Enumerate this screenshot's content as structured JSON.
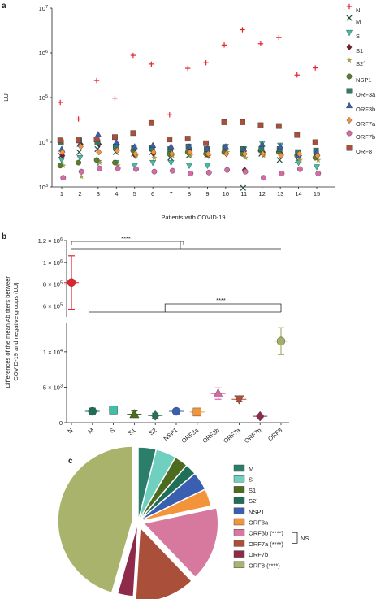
{
  "chart_data": [
    {
      "panel": "a",
      "type": "scatter",
      "xlabel": "Patients with COVID-19",
      "ylabel": "LU",
      "yscale": "log",
      "ylim": [
        1000,
        10000000
      ],
      "ytick_labels": [
        {
          "base": "10",
          "exp": "3",
          "value": 1000
        },
        {
          "base": "10",
          "exp": "4",
          "value": 10000
        },
        {
          "base": "10",
          "exp": "5",
          "value": 100000
        },
        {
          "base": "10",
          "exp": "6",
          "value": 1000000
        },
        {
          "base": "10",
          "exp": "7",
          "value": 10000000
        }
      ],
      "categories": [
        "1",
        "2",
        "3",
        "4",
        "5",
        "6",
        "7",
        "8",
        "9",
        "10",
        "11",
        "12",
        "13",
        "14",
        "15"
      ],
      "legend_position": "right",
      "series": [
        {
          "name": "N",
          "marker": "plus",
          "color": "#e3232b",
          "values": [
            78000,
            33000,
            240000,
            97000,
            880000,
            560000,
            41000,
            450000,
            600000,
            1500000,
            3300000,
            1600000,
            2200000,
            320000,
            460000
          ]
        },
        {
          "name": "M",
          "marker": "x",
          "color": "#1f4e3d",
          "values": [
            5000,
            6000,
            7000,
            6000,
            5500,
            6000,
            4500,
            5000,
            5000,
            6500,
            950,
            5500,
            4000,
            4000,
            5500
          ]
        },
        {
          "name": "S",
          "marker": "tri-down",
          "color": "#3fbfa8",
          "values": [
            4000,
            4500,
            3500,
            3500,
            3000,
            3500,
            3500,
            3000,
            3000,
            8000,
            7000,
            9500,
            8500,
            3500,
            2800
          ]
        },
        {
          "name": "S1",
          "marker": "diamond",
          "color": "#7a1d2f",
          "values": [
            5000,
            9000,
            9000,
            9000,
            5000,
            5500,
            5500,
            6500,
            5000,
            5500,
            2400,
            6000,
            5500,
            5000,
            5000
          ]
        },
        {
          "name": "S2´",
          "marker": "star",
          "color": "#a3a04a",
          "values": [
            3000,
            1700,
            3500,
            3000,
            5000,
            4500,
            5000,
            5000,
            5000,
            6000,
            4500,
            5000,
            5000,
            4000,
            4000
          ]
        },
        {
          "name": "NSP1",
          "marker": "circle",
          "color": "#5d7b2a",
          "values": [
            3000,
            3500,
            4000,
            3500,
            6500,
            7000,
            5500,
            6000,
            5500,
            6000,
            5500,
            6500,
            6000,
            5000,
            4500
          ]
        },
        {
          "name": "ORF3a",
          "marker": "square",
          "color": "#2b7f6a",
          "values": [
            10000,
            11000,
            10000,
            8000,
            7500,
            7500,
            7000,
            8000,
            7000,
            7500,
            7000,
            7000,
            7000,
            6000,
            6500
          ]
        },
        {
          "name": "ORF3b",
          "marker": "tri-up",
          "color": "#3a5fb0",
          "values": [
            7000,
            9000,
            15000,
            10000,
            8000,
            8500,
            8000,
            8000,
            7000,
            8000,
            7000,
            9000,
            8000,
            5000,
            6000
          ]
        },
        {
          "name": "ORF7a",
          "marker": "diamond",
          "color": "#f4943a",
          "values": [
            6000,
            8000,
            6000,
            6500,
            5500,
            6000,
            5500,
            6000,
            5500,
            5500,
            5500,
            5500,
            5000,
            5500,
            5000
          ]
        },
        {
          "name": "ORF7b",
          "marker": "circle",
          "color": "#d56aa6",
          "values": [
            1600,
            2200,
            2600,
            2600,
            2500,
            2200,
            2300,
            2000,
            2100,
            2400,
            2200,
            1600,
            2000,
            2500,
            2000
          ]
        },
        {
          "name": "ORF8",
          "marker": "square",
          "color": "#a94f3a",
          "values": [
            11000,
            11000,
            11500,
            13000,
            16000,
            27000,
            11500,
            12000,
            9500,
            28000,
            28000,
            24000,
            23000,
            14500,
            10000
          ]
        }
      ]
    },
    {
      "panel": "b",
      "type": "scatter",
      "ylabel": "Differences of the mean Ab titers between COVID-19 and negative groups (LU)",
      "categories": [
        "N",
        "M",
        "S",
        "S1",
        "S2",
        "NSP1",
        "ORF3a",
        "ORF3b",
        "ORF7a",
        "ORF7b",
        "ORF8"
      ],
      "broken_axis": true,
      "upper_ylim": [
        500000,
        1200000
      ],
      "lower_ylim": [
        0,
        14000
      ],
      "upper_ytick_labels": [
        {
          "mant": "1.2",
          "exp": "6",
          "value": 1200000
        },
        {
          "mant": "1",
          "exp": "6",
          "value": 1000000
        },
        {
          "mant": "8",
          "exp": "5",
          "value": 800000
        },
        {
          "mant": "6",
          "exp": "5",
          "value": 600000
        }
      ],
      "lower_ytick_labels": [
        {
          "mant": "1",
          "exp": "4",
          "value": 10000
        },
        {
          "mant": "5",
          "exp": "3",
          "value": 5000
        },
        {
          "plain": "0",
          "value": 0
        }
      ],
      "points": [
        {
          "category": "N",
          "value": 815000,
          "low": 570000,
          "high": 1060000,
          "color": "#e3232b",
          "marker": "circle"
        },
        {
          "category": "M",
          "value": 1600,
          "low": 1150,
          "high": 2050,
          "color": "#1f6e58",
          "marker": "circle"
        },
        {
          "category": "S",
          "value": 1800,
          "low": 1250,
          "high": 2350,
          "color": "#3fbfa8",
          "marker": "square"
        },
        {
          "category": "S1",
          "value": 1200,
          "low": 750,
          "high": 1650,
          "color": "#4d6b1e",
          "marker": "tri-up"
        },
        {
          "category": "S2",
          "value": 1000,
          "low": 650,
          "high": 1350,
          "color": "#2b6e5e",
          "marker": "diamond"
        },
        {
          "category": "NSP1",
          "value": 1600,
          "low": 1350,
          "high": 1850,
          "color": "#3a5fb0",
          "marker": "circle"
        },
        {
          "category": "ORF3a",
          "value": 1500,
          "low": 1000,
          "high": 2000,
          "color": "#f4943a",
          "marker": "square"
        },
        {
          "category": "ORF3b",
          "value": 4100,
          "low": 3300,
          "high": 4900,
          "color": "#d56aa6",
          "marker": "tri-up"
        },
        {
          "category": "ORF7a",
          "value": 3300,
          "low": 3050,
          "high": 3550,
          "color": "#a94f3a",
          "marker": "tri-down"
        },
        {
          "category": "ORF7b",
          "value": 900,
          "low": 700,
          "high": 1100,
          "color": "#8e2a4a",
          "marker": "diamond"
        },
        {
          "category": "ORF8",
          "value": 11500,
          "low": 9600,
          "high": 13400,
          "color": "#a3b068",
          "marker": "circle"
        }
      ],
      "annotations": [
        {
          "text": "****",
          "compare": "N vs all others"
        },
        {
          "text": "****",
          "compare": "ORF8 vs all others"
        }
      ]
    },
    {
      "panel": "c",
      "type": "pie",
      "legend_position": "right",
      "slices": [
        {
          "label": "M",
          "value": 3.6,
          "color": "#2b7f6a",
          "exploded": false
        },
        {
          "label": "S",
          "value": 4.1,
          "color": "#6fd0c0",
          "exploded": false
        },
        {
          "label": "S1",
          "value": 2.7,
          "color": "#4d6b1e",
          "exploded": false
        },
        {
          "label": "S2´",
          "value": 2.3,
          "color": "#1f6e58",
          "exploded": false
        },
        {
          "label": "NSP1",
          "value": 3.7,
          "color": "#3a5fb0",
          "exploded": false
        },
        {
          "label": "ORF3a",
          "value": 3.5,
          "color": "#f4943a",
          "exploded": false
        },
        {
          "label": "ORF3b (****)",
          "value": 14.9,
          "color": "#d7799e",
          "exploded": true
        },
        {
          "label": "ORF7a (****)",
          "value": 12.1,
          "color": "#a94f3a",
          "exploded": true
        },
        {
          "label": "ORF7b",
          "value": 3.2,
          "color": "#8e2a4a",
          "exploded": false
        },
        {
          "label": "ORF8 (****)",
          "value": 41.9,
          "color": "#a9b36b",
          "exploded": true
        }
      ],
      "legend_label_colors": [
        "#2b7f6a",
        "#2b7f6a",
        "#4d6b1e",
        "#1f6e58",
        "#3a5fb0",
        "#2b7f6a",
        "#e0675a",
        "#e0675a",
        "#a94f3a",
        "#8e2a4a"
      ],
      "bracket_label": "NS"
    }
  ],
  "panel_labels": [
    "a",
    "b",
    "c"
  ]
}
